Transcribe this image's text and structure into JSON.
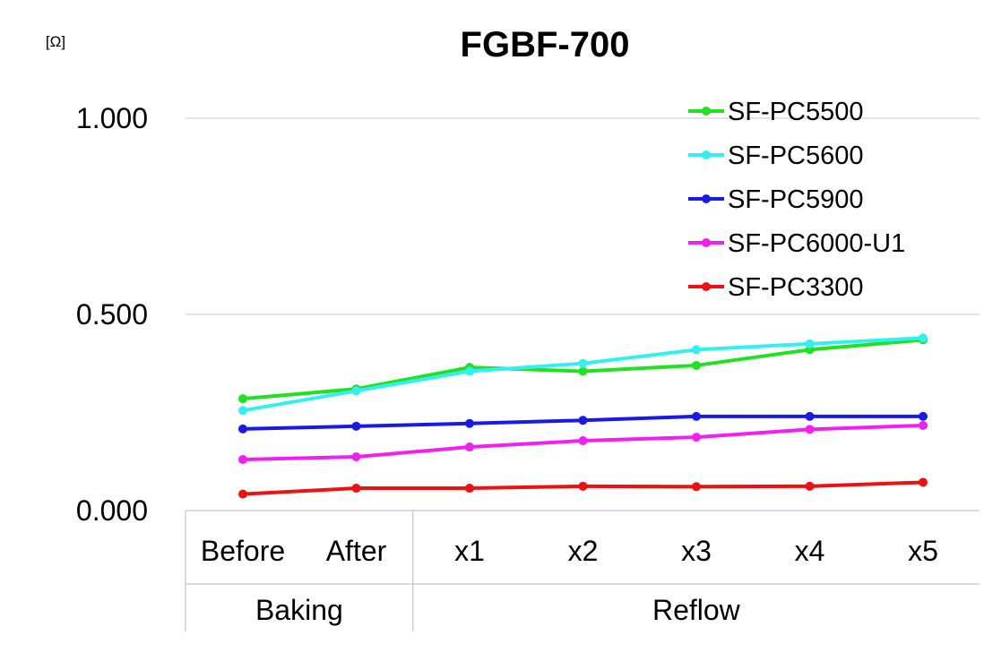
{
  "chart_data": {
    "type": "line",
    "title": "FGBF-700",
    "unit_label": "[Ω]",
    "ylim": [
      0,
      1
    ],
    "y_ticks": [
      "0.000",
      "0.500",
      "1.000"
    ],
    "y_tick_values": [
      0,
      0.5,
      1
    ],
    "grid": true,
    "legend_position": "top-right",
    "categories": [
      "Before",
      "After",
      "x1",
      "x2",
      "x3",
      "x4",
      "x5"
    ],
    "groups": [
      {
        "label": "Baking",
        "span": [
          0,
          1
        ]
      },
      {
        "label": "Reflow",
        "span": [
          2,
          6
        ]
      }
    ],
    "series": [
      {
        "name": "SF-PC5500",
        "color": "#22e022",
        "values": [
          0.285,
          0.31,
          0.365,
          0.355,
          0.37,
          0.41,
          0.435
        ]
      },
      {
        "name": "SF-PC5600",
        "color": "#33f0f0",
        "values": [
          0.255,
          0.305,
          0.355,
          0.375,
          0.41,
          0.425,
          0.44
        ]
      },
      {
        "name": "SF-PC5900",
        "color": "#1a1ae6",
        "values": [
          0.208,
          0.215,
          0.222,
          0.23,
          0.24,
          0.24,
          0.24
        ]
      },
      {
        "name": "SF-PC6000-U1",
        "color": "#f020f0",
        "values": [
          0.13,
          0.137,
          0.162,
          0.178,
          0.187,
          0.207,
          0.217
        ]
      },
      {
        "name": "SF-PC3300",
        "color": "#ee1111",
        "values": [
          0.042,
          0.057,
          0.057,
          0.062,
          0.061,
          0.062,
          0.072
        ]
      }
    ]
  }
}
